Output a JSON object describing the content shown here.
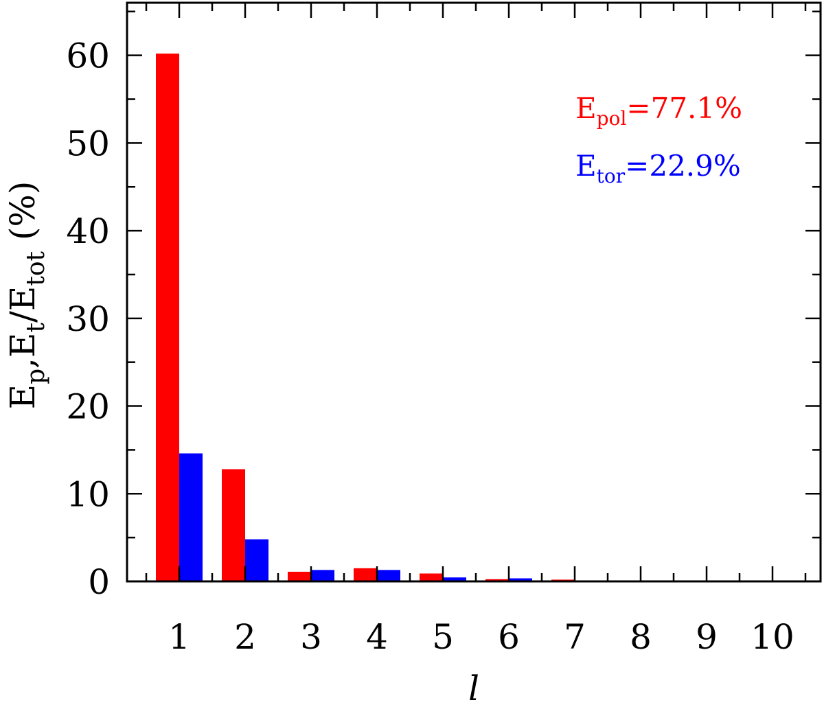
{
  "chart_data": {
    "type": "bar",
    "categories": [
      "1",
      "2",
      "3",
      "4",
      "5",
      "6",
      "7",
      "8",
      "9",
      "10"
    ],
    "series": [
      {
        "values": [
          60.2,
          12.8,
          1.1,
          1.5,
          0.9,
          0.25,
          0.2,
          0,
          0,
          0
        ],
        "color": "#ff0000"
      },
      {
        "values": [
          14.6,
          4.8,
          1.3,
          1.3,
          0.45,
          0.35,
          0,
          0,
          0,
          0
        ],
        "color": "#0000ff"
      }
    ],
    "ylim": [
      0,
      66
    ],
    "yticks": [
      "0",
      "10",
      "20",
      "30",
      "40",
      "50",
      "60"
    ],
    "xlabel": "l",
    "ylabel": {
      "e1": "E",
      "s1": "p",
      "sep": ",",
      "e2": "E",
      "s2": "t",
      "slash": "/",
      "e3": "E",
      "s3": "tot",
      "tail": " (%)"
    },
    "annotations": [
      {
        "base": "E",
        "sub": "pol",
        "rest": "=77.1%",
        "color": "#ff0000"
      },
      {
        "base": "E",
        "sub": "tor",
        "rest": "=22.9%",
        "color": "#0000ff"
      }
    ],
    "grid": false
  }
}
